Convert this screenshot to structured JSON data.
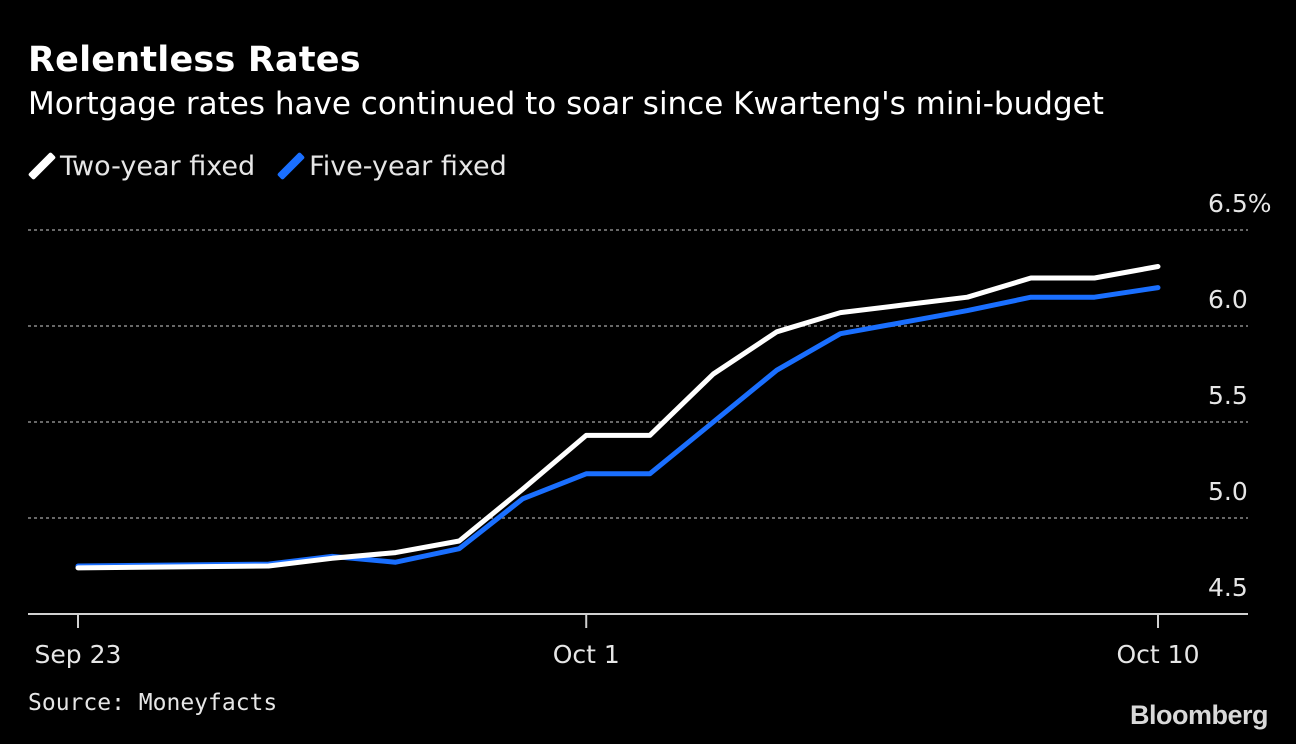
{
  "header": {
    "title": "Relentless Rates",
    "subtitle": "Mortgage rates have continued to soar since Kwarteng's mini-budget"
  },
  "footer": {
    "source": "Source: Moneyfacts",
    "logo": "Bloomberg"
  },
  "chart_data": {
    "type": "line",
    "x_ticks": [
      "Sep 23",
      "Oct 1",
      "Oct 10"
    ],
    "y_ticks": [
      "4.5",
      "5.0",
      "5.5",
      "6.0",
      "6.5%"
    ],
    "ylim": [
      4.5,
      6.5
    ],
    "grid": true,
    "legend_placement": "top-left",
    "series": [
      {
        "name": "Two-year fixed",
        "color": "#ffffff",
        "points": [
          [
            "2022-09-23",
            4.74
          ],
          [
            "2022-09-26",
            4.75
          ],
          [
            "2022-09-27",
            4.79
          ],
          [
            "2022-09-28",
            4.82
          ],
          [
            "2022-09-29",
            4.88
          ],
          [
            "2022-09-30",
            5.15
          ],
          [
            "2022-10-01",
            5.43
          ],
          [
            "2022-10-02",
            5.43
          ],
          [
            "2022-10-03",
            5.75
          ],
          [
            "2022-10-04",
            5.97
          ],
          [
            "2022-10-05",
            6.07
          ],
          [
            "2022-10-06",
            6.11
          ],
          [
            "2022-10-07",
            6.15
          ],
          [
            "2022-10-08",
            6.25
          ],
          [
            "2022-10-09",
            6.25
          ],
          [
            "2022-10-10",
            6.31
          ]
        ]
      },
      {
        "name": "Five-year fixed",
        "color": "#1a6fff",
        "points": [
          [
            "2022-09-23",
            4.75
          ],
          [
            "2022-09-26",
            4.76
          ],
          [
            "2022-09-27",
            4.8
          ],
          [
            "2022-09-28",
            4.77
          ],
          [
            "2022-09-29",
            4.84
          ],
          [
            "2022-09-30",
            5.1
          ],
          [
            "2022-10-01",
            5.23
          ],
          [
            "2022-10-02",
            5.23
          ],
          [
            "2022-10-03",
            5.5
          ],
          [
            "2022-10-04",
            5.77
          ],
          [
            "2022-10-05",
            5.96
          ],
          [
            "2022-10-06",
            6.02
          ],
          [
            "2022-10-07",
            6.08
          ],
          [
            "2022-10-08",
            6.15
          ],
          [
            "2022-10-09",
            6.15
          ],
          [
            "2022-10-10",
            6.2
          ]
        ]
      }
    ]
  }
}
